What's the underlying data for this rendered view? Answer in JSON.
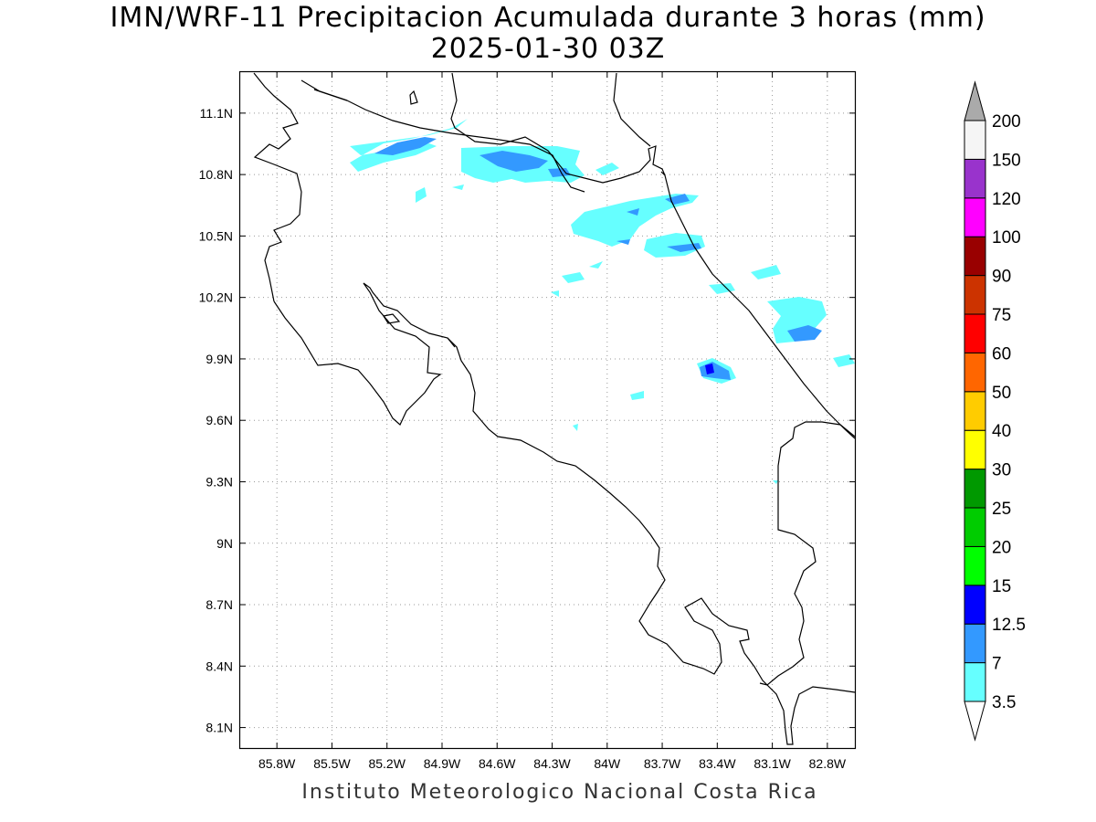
{
  "title": {
    "line1": "IMN/WRF-11 Precipitacion Acumulada durante 3 horas (mm)",
    "line2": "2025-01-30 03Z"
  },
  "footer": "Instituto Meteorologico Nacional Costa Rica",
  "map": {
    "lon_range": [
      -86.0,
      -82.65
    ],
    "lat_range": [
      8.0,
      11.3
    ],
    "lon_ticks": [
      {
        "value": -85.8,
        "label": "85.8W"
      },
      {
        "value": -85.5,
        "label": "85.5W"
      },
      {
        "value": -85.2,
        "label": "85.2W"
      },
      {
        "value": -84.9,
        "label": "84.9W"
      },
      {
        "value": -84.6,
        "label": "84.6W"
      },
      {
        "value": -84.3,
        "label": "84.3W"
      },
      {
        "value": -84.0,
        "label": "84W"
      },
      {
        "value": -83.7,
        "label": "83.7W"
      },
      {
        "value": -83.4,
        "label": "83.4W"
      },
      {
        "value": -83.1,
        "label": "83.1W"
      },
      {
        "value": -82.8,
        "label": "82.8W"
      }
    ],
    "lat_ticks": [
      {
        "value": 11.1,
        "label": "11.1N"
      },
      {
        "value": 10.8,
        "label": "10.8N"
      },
      {
        "value": 10.5,
        "label": "10.5N"
      },
      {
        "value": 10.2,
        "label": "10.2N"
      },
      {
        "value": 9.9,
        "label": "9.9N"
      },
      {
        "value": 9.6,
        "label": "9.6N"
      },
      {
        "value": 9.3,
        "label": "9.3N"
      },
      {
        "value": 9.0,
        "label": "9N"
      },
      {
        "value": 8.7,
        "label": "8.7N"
      },
      {
        "value": 8.4,
        "label": "8.4N"
      },
      {
        "value": 8.1,
        "label": "8.1N"
      }
    ],
    "grid": true
  },
  "legend": {
    "colors": [
      "#66ffff",
      "#3399ff",
      "#0000ff",
      "#00ff00",
      "#00cc00",
      "#009900",
      "#ffff00",
      "#ffcc00",
      "#ff6600",
      "#ff0000",
      "#cc3300",
      "#990000",
      "#ff00ff",
      "#9933cc",
      "#f5f5f5",
      "#aaaaaa"
    ],
    "labels": [
      "3.5",
      "7",
      "12.5",
      "15",
      "20",
      "25",
      "30",
      "40",
      "50",
      "60",
      "75",
      "90",
      "100",
      "120",
      "150",
      "200"
    ]
  },
  "precip_colors": {
    "light": "#66ffff",
    "moderate": "#3399ff",
    "heavy": "#0000ff"
  }
}
